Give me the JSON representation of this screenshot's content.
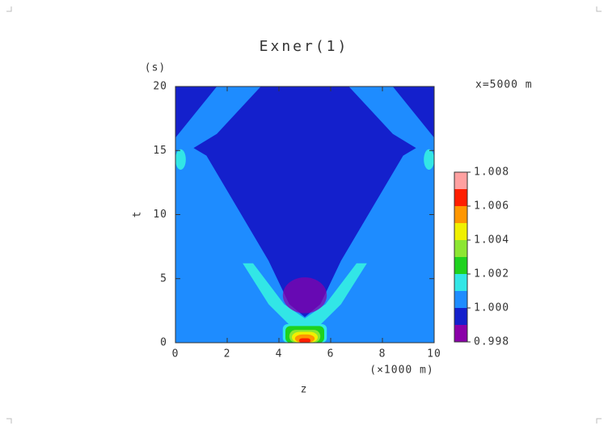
{
  "chart_data": {
    "type": "contour",
    "title": "Exner(1)",
    "annotation": "x=5000 m",
    "xlabel": "z",
    "xunit": "(×1000 m)",
    "ylabel": "t",
    "yunit": "(s)",
    "xlim": [
      0,
      10
    ],
    "xticks": [
      0,
      2,
      4,
      6,
      8,
      10
    ],
    "ylim": [
      0,
      20
    ],
    "yticks": [
      0,
      5,
      10,
      15,
      20
    ],
    "levels": [
      0.998,
      0.999,
      1.0,
      1.001,
      1.002,
      1.003,
      1.004,
      1.005,
      1.006,
      1.007,
      1.008
    ],
    "colors": [
      "#8a00a8",
      "#1420cc",
      "#1e8cff",
      "#32e6e6",
      "#1ed21e",
      "#8ce632",
      "#f0f000",
      "#ff9600",
      "#ff1e00",
      "#ffa0a0"
    ],
    "cticks": [
      {
        "value": 0.998,
        "label": "0.998"
      },
      {
        "value": 1.0,
        "label": "1.000"
      },
      {
        "value": 1.002,
        "label": "1.002"
      },
      {
        "value": 1.004,
        "label": "1.004"
      },
      {
        "value": 1.006,
        "label": "1.006"
      },
      {
        "value": 1.008,
        "label": "1.008"
      }
    ]
  }
}
